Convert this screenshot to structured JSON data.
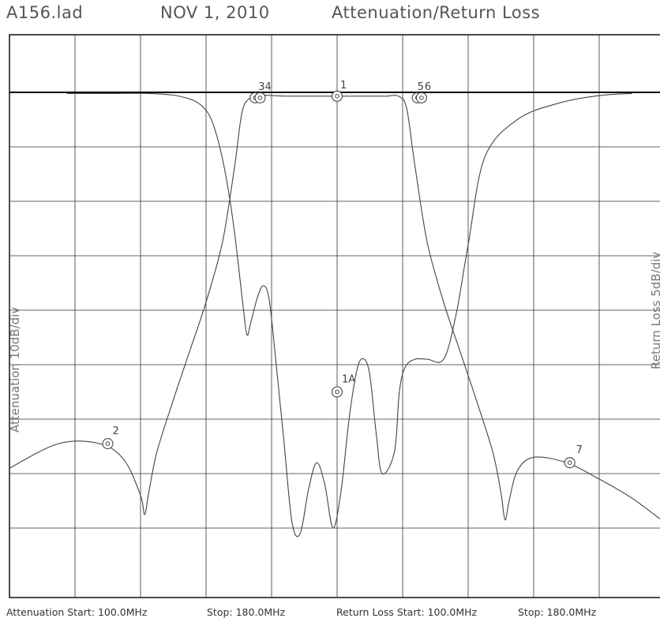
{
  "header": {
    "file": "A156.lad",
    "date": "NOV 1, 2010",
    "title": "Attenuation/Return Loss"
  },
  "footer": {
    "att_start": "Attenuation Start: 100.0MHz",
    "att_stop": "Stop: 180.0MHz",
    "rl_start": "Return Loss Start: 100.0MHz",
    "rl_stop": "Stop: 180.0MHz"
  },
  "chart_data": {
    "type": "line",
    "title": "Attenuation/Return Loss",
    "xlabel": "",
    "ylabel_left": "Attenuation 10dB/div",
    "ylabel_right": "Return Loss 5dB/div",
    "xlim": [
      100,
      180
    ],
    "x_divisions": 10,
    "y_divisions": 9,
    "grid": true,
    "ylim_divisions": [
      0,
      9
    ],
    "series": [
      {
        "kind": "attenuation",
        "x": [
          100,
          106,
          111,
          114,
          116,
          116.5,
          117,
          118,
          120,
          122,
          124,
          126,
          127.5,
          128.5,
          130,
          131,
          132,
          134,
          136,
          140,
          144,
          146,
          147.5,
          148.5,
          149.5,
          151,
          153,
          155,
          157,
          159,
          160,
          160.5,
          161,
          162,
          164,
          168,
          172,
          176,
          180
        ],
        "y_div": [
          6.9,
          6.45,
          6.45,
          6.75,
          7.4,
          7.75,
          7.35,
          6.6,
          5.65,
          4.75,
          3.85,
          2.75,
          1.35,
          0.3,
          0.07,
          0.05,
          0.06,
          0.07,
          0.07,
          0.07,
          0.07,
          0.07,
          0.07,
          0.3,
          1.35,
          2.75,
          3.85,
          4.75,
          5.65,
          6.6,
          7.35,
          7.85,
          7.5,
          6.95,
          6.7,
          6.8,
          7.1,
          7.45,
          7.9
        ]
      },
      {
        "kind": "return_loss",
        "x": [
          107,
          112,
          117,
          120,
          121.5,
          122.5,
          123.5,
          124.5,
          125.5,
          126.5,
          127.5,
          128.5,
          129,
          129.5,
          130.3,
          131,
          131.7,
          132.5,
          133.5,
          134.5,
          135.5,
          136.5,
          137.5,
          138.5,
          139.5,
          140.5,
          141.5,
          142.5,
          143.3,
          144,
          144.8,
          145.5,
          147,
          147.6,
          148.3,
          149.5,
          151,
          153,
          154.5,
          156,
          158,
          162,
          167,
          172,
          176
        ],
        "y_div": [
          0.02,
          0.02,
          0.02,
          0.05,
          0.1,
          0.15,
          0.25,
          0.45,
          0.9,
          1.6,
          2.6,
          3.9,
          4.45,
          4.2,
          3.75,
          3.55,
          3.8,
          4.9,
          6.4,
          7.9,
          8.1,
          7.3,
          6.8,
          7.2,
          8.0,
          7.3,
          5.95,
          5.05,
          4.9,
          5.2,
          6.3,
          7.0,
          6.6,
          5.5,
          5.05,
          4.9,
          4.9,
          4.9,
          4.1,
          2.8,
          1.2,
          0.5,
          0.2,
          0.06,
          0.02
        ]
      }
    ],
    "markers": [
      {
        "label": "1",
        "x": 140,
        "y_div": 0.07
      },
      {
        "label": "3",
        "x": 130,
        "y_div": 0.1
      },
      {
        "label": "4",
        "x": 130.6,
        "y_div": 0.1
      },
      {
        "label": "5",
        "x": 149.8,
        "y_div": 0.1
      },
      {
        "label": "6",
        "x": 150.3,
        "y_div": 0.1
      },
      {
        "label": "1A",
        "x": 140,
        "y_div": 5.5
      },
      {
        "label": "2",
        "x": 112,
        "y_div": 6.45
      },
      {
        "label": "7",
        "x": 168.4,
        "y_div": 6.8
      }
    ]
  }
}
